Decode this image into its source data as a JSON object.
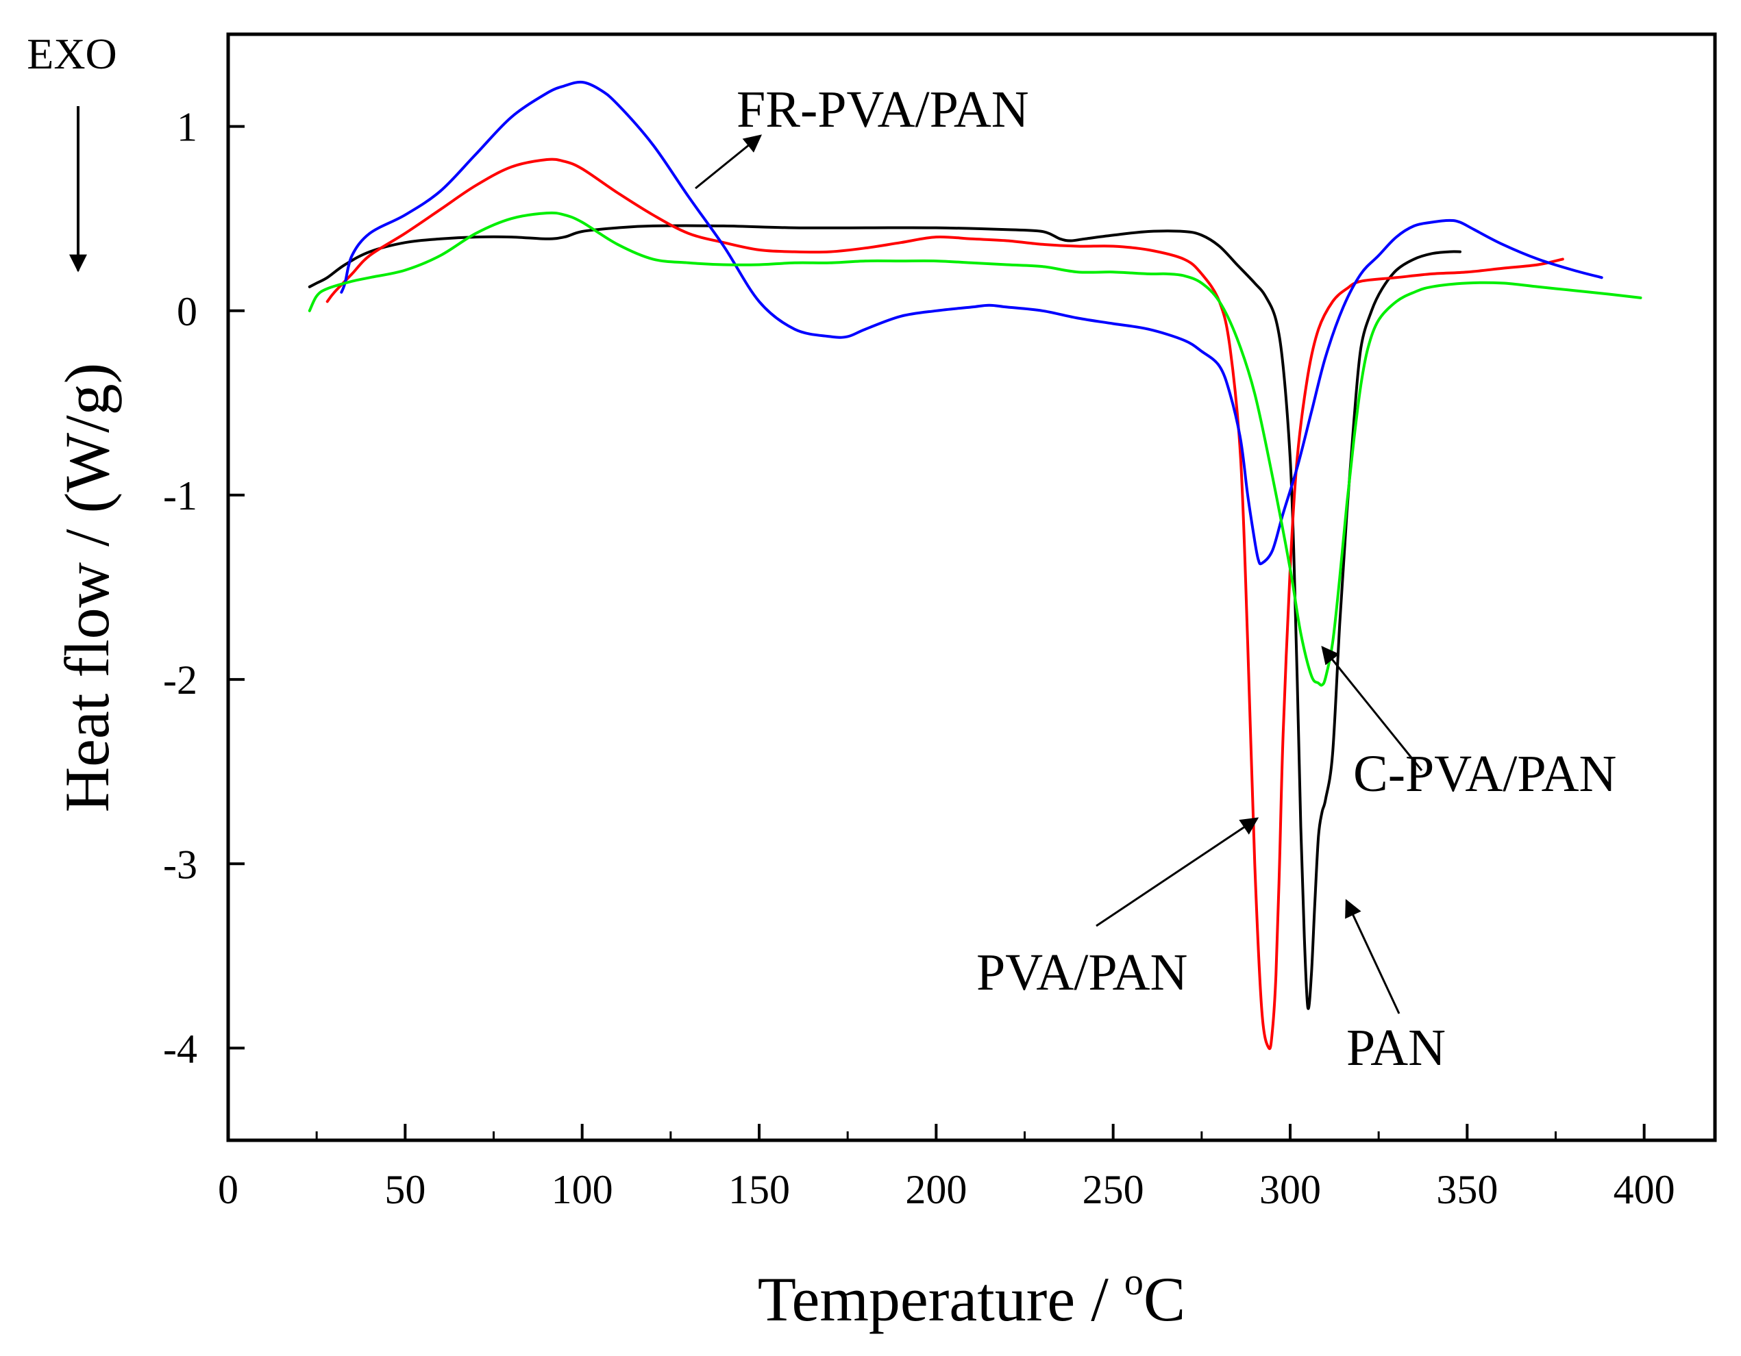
{
  "chart_data": {
    "type": "line",
    "title": "",
    "xlabel": "Temperature / oC",
    "xlabel_main": "Temperature / ",
    "xlabel_sup": "o",
    "xlabel_unit": "C",
    "ylabel": "Heat flow / (W/g)",
    "xlim": [
      0,
      420
    ],
    "ylim": [
      -4.5,
      1.5
    ],
    "x_ticks": [
      0,
      50,
      100,
      150,
      200,
      250,
      300,
      350,
      400
    ],
    "y_ticks": [
      1,
      0,
      -1,
      -2,
      -3,
      -4
    ],
    "x_tick_labels": [
      "0",
      "50",
      "100",
      "150",
      "200",
      "250",
      "300",
      "350",
      "400"
    ],
    "y_tick_labels": [
      "1",
      "0",
      "-1",
      "-2",
      "-3",
      "-4"
    ],
    "exo_label": "EXO",
    "series": [
      {
        "name": "PAN",
        "color": "#000000",
        "x": [
          23,
          25,
          28,
          33,
          40,
          50,
          60,
          70,
          80,
          90,
          95,
          100,
          110,
          120,
          140,
          160,
          180,
          200,
          220,
          230,
          235,
          238,
          242,
          250,
          260,
          270,
          275,
          280,
          285,
          290,
          293,
          296,
          298,
          300,
          301,
          302,
          303,
          304,
          305,
          306,
          307,
          308,
          309,
          310,
          312,
          314,
          316,
          318,
          320,
          323,
          326,
          330,
          335,
          340,
          345,
          348
        ],
        "values": [
          0.13,
          0.15,
          0.18,
          0.25,
          0.32,
          0.37,
          0.39,
          0.4,
          0.4,
          0.39,
          0.4,
          0.43,
          0.45,
          0.46,
          0.46,
          0.45,
          0.45,
          0.45,
          0.44,
          0.43,
          0.39,
          0.38,
          0.39,
          0.41,
          0.43,
          0.43,
          0.41,
          0.35,
          0.25,
          0.15,
          0.08,
          -0.05,
          -0.3,
          -0.8,
          -1.3,
          -2.0,
          -2.8,
          -3.4,
          -3.78,
          -3.6,
          -3.2,
          -2.85,
          -2.72,
          -2.65,
          -2.4,
          -1.7,
          -1.1,
          -0.6,
          -0.2,
          0.0,
          0.12,
          0.22,
          0.28,
          0.31,
          0.32,
          0.32
        ]
      },
      {
        "name": "PVA/PAN",
        "color": "#ff0000",
        "x": [
          28,
          30,
          35,
          40,
          50,
          60,
          70,
          80,
          90,
          95,
          100,
          110,
          120,
          130,
          140,
          150,
          160,
          170,
          180,
          190,
          200,
          210,
          220,
          230,
          240,
          250,
          260,
          270,
          275,
          280,
          283,
          286,
          288,
          290,
          292,
          294,
          295,
          296,
          297,
          298,
          300,
          302,
          305,
          308,
          312,
          316,
          320,
          330,
          340,
          350,
          360,
          370,
          377
        ],
        "values": [
          0.05,
          0.1,
          0.2,
          0.3,
          0.42,
          0.55,
          0.68,
          0.78,
          0.82,
          0.81,
          0.77,
          0.64,
          0.52,
          0.42,
          0.37,
          0.33,
          0.32,
          0.32,
          0.34,
          0.37,
          0.4,
          0.39,
          0.38,
          0.36,
          0.35,
          0.35,
          0.33,
          0.28,
          0.2,
          0.05,
          -0.2,
          -0.8,
          -1.8,
          -3.0,
          -3.8,
          -4.0,
          -3.9,
          -3.6,
          -3.0,
          -2.3,
          -1.4,
          -0.8,
          -0.35,
          -0.1,
          0.05,
          0.12,
          0.16,
          0.18,
          0.2,
          0.21,
          0.23,
          0.25,
          0.28
        ]
      },
      {
        "name": "FR-PVA/PAN",
        "color": "#0000ff",
        "x": [
          32,
          33,
          35,
          40,
          50,
          60,
          70,
          80,
          90,
          95,
          100,
          105,
          110,
          120,
          130,
          140,
          150,
          160,
          170,
          175,
          180,
          190,
          200,
          210,
          215,
          220,
          230,
          240,
          250,
          260,
          270,
          275,
          280,
          283,
          286,
          288,
          290,
          291,
          292,
          295,
          298,
          302,
          306,
          310,
          315,
          320,
          325,
          330,
          335,
          340,
          345,
          348,
          352,
          360,
          370,
          380,
          388
        ],
        "values": [
          0.1,
          0.15,
          0.3,
          0.42,
          0.52,
          0.65,
          0.85,
          1.05,
          1.18,
          1.22,
          1.24,
          1.2,
          1.12,
          0.9,
          0.62,
          0.35,
          0.05,
          -0.1,
          -0.14,
          -0.14,
          -0.1,
          -0.03,
          0.0,
          0.02,
          0.03,
          0.02,
          0.0,
          -0.04,
          -0.07,
          -0.1,
          -0.16,
          -0.22,
          -0.3,
          -0.45,
          -0.7,
          -1.0,
          -1.25,
          -1.35,
          -1.37,
          -1.3,
          -1.1,
          -0.85,
          -0.55,
          -0.25,
          0.02,
          0.2,
          0.3,
          0.4,
          0.46,
          0.48,
          0.49,
          0.48,
          0.44,
          0.36,
          0.28,
          0.22,
          0.18
        ]
      },
      {
        "name": "C-PVA/PAN",
        "color": "#00ee00",
        "x": [
          23,
          25,
          28,
          35,
          40,
          50,
          60,
          70,
          80,
          90,
          95,
          100,
          110,
          120,
          130,
          140,
          150,
          160,
          170,
          180,
          190,
          200,
          210,
          220,
          230,
          240,
          250,
          260,
          265,
          270,
          275,
          280,
          285,
          290,
          295,
          300,
          303,
          306,
          308,
          309,
          310,
          312,
          314,
          316,
          318,
          320,
          322,
          325,
          330,
          335,
          340,
          350,
          360,
          370,
          380,
          390,
          399
        ],
        "values": [
          0.0,
          0.08,
          0.12,
          0.16,
          0.18,
          0.22,
          0.3,
          0.42,
          0.5,
          0.53,
          0.52,
          0.48,
          0.36,
          0.28,
          0.26,
          0.25,
          0.25,
          0.26,
          0.26,
          0.27,
          0.27,
          0.27,
          0.26,
          0.25,
          0.24,
          0.21,
          0.21,
          0.2,
          0.2,
          0.19,
          0.15,
          0.05,
          -0.15,
          -0.45,
          -0.9,
          -1.4,
          -1.75,
          -1.98,
          -2.02,
          -2.03,
          -1.99,
          -1.8,
          -1.45,
          -1.05,
          -0.7,
          -0.4,
          -0.2,
          -0.05,
          0.05,
          0.1,
          0.13,
          0.15,
          0.15,
          0.13,
          0.11,
          0.09,
          0.07
        ]
      }
    ],
    "annotations": [
      {
        "text": "FR-PVA/PAN",
        "series": "FR-PVA/PAN"
      },
      {
        "text": "C-PVA/PAN",
        "series": "C-PVA/PAN"
      },
      {
        "text": "PVA/PAN",
        "series": "PVA/PAN"
      },
      {
        "text": "PAN",
        "series": "PAN"
      }
    ],
    "grid": false,
    "legend": "none"
  }
}
